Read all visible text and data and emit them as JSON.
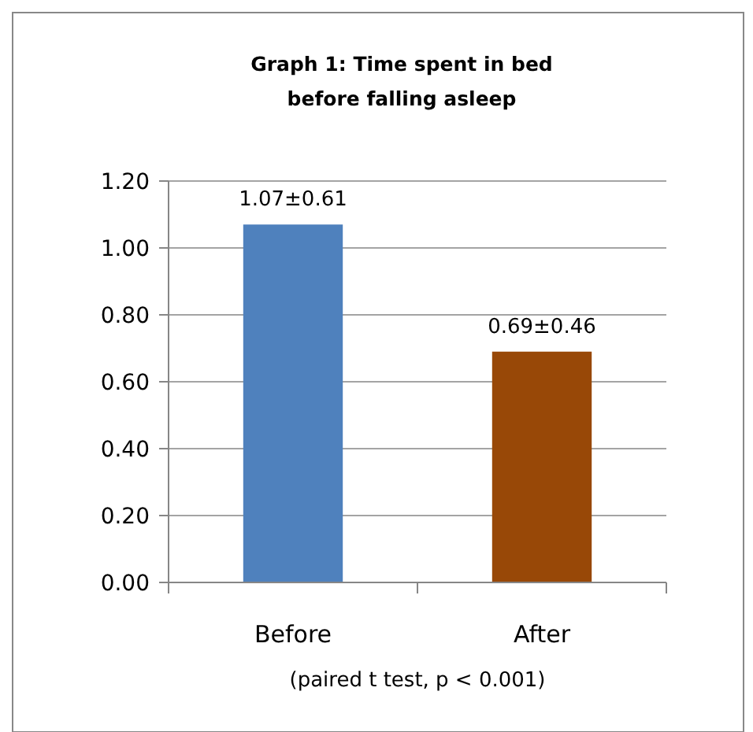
{
  "chart_data": {
    "type": "bar",
    "title": "Graph 1: Time spent in bed before falling asleep",
    "xlabel": "(paired t test, p < 0.001)",
    "categories": [
      "Before",
      "After"
    ],
    "values": [
      1.07,
      0.69
    ],
    "colors": [
      "#4f81bd",
      "#984807"
    ],
    "value_labels": [
      "1.07±0.61",
      "0.69±0.46"
    ],
    "ylim": [
      0,
      1.2
    ],
    "yticks": [
      {
        "value": 0,
        "label": "0.00"
      },
      {
        "value": 0.2,
        "label": "0.20"
      },
      {
        "value": 0.4,
        "label": "0.40"
      },
      {
        "value": 0.6,
        "label": "0.60"
      },
      {
        "value": 0.8,
        "label": "0.80"
      },
      {
        "value": 1,
        "label": "1.00"
      },
      {
        "value": 1.2,
        "label": "1.20"
      }
    ],
    "grid": "y"
  }
}
